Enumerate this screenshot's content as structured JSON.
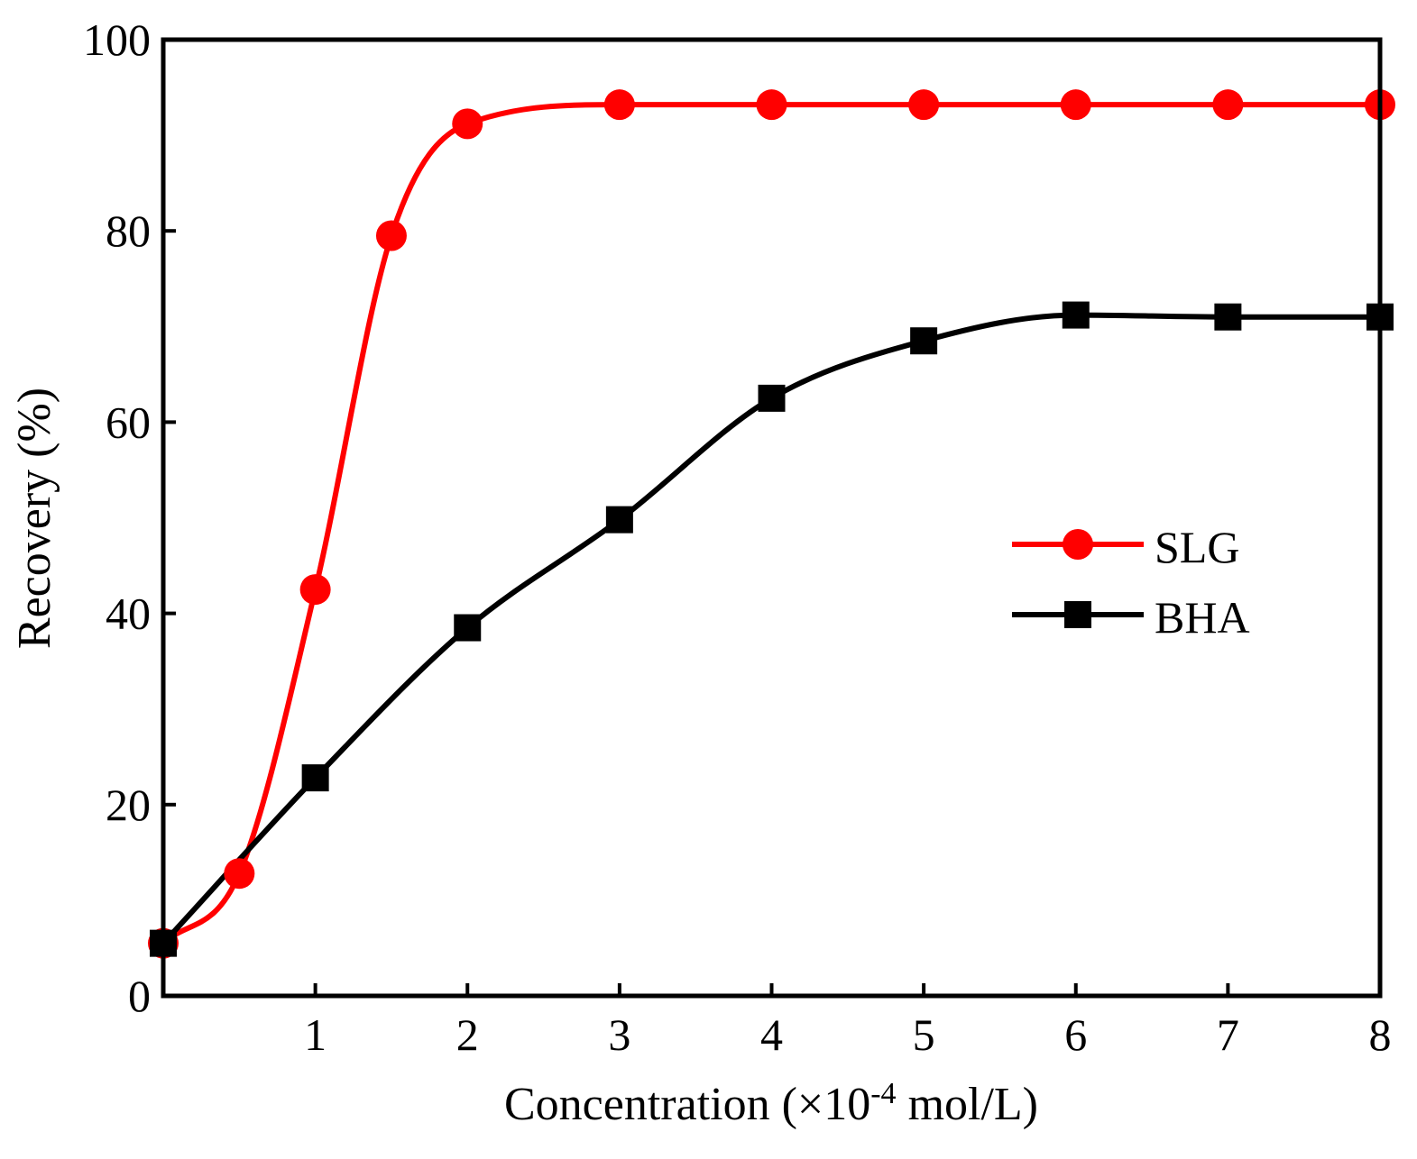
{
  "chart_data": {
    "type": "line",
    "xlabel": "Concentration (×10",
    "xlabel_superscript": "-4",
    "xlabel_suffix": " mol/L)",
    "ylabel": "Recovery (%)",
    "xlim": [
      0,
      8
    ],
    "ylim": [
      0,
      100
    ],
    "x_ticks": [
      "1",
      "2",
      "3",
      "4",
      "5",
      "6",
      "7",
      "8"
    ],
    "y_ticks": [
      "0",
      "20",
      "40",
      "60",
      "80",
      "100"
    ],
    "grid": false,
    "legend_position": "center-right",
    "series": [
      {
        "name": "SLG",
        "color": "#ff0000",
        "marker": "circle",
        "x": [
          0,
          0.5,
          1,
          1.5,
          2,
          3,
          4,
          5,
          6,
          7,
          8
        ],
        "y": [
          5.5,
          12.8,
          42.5,
          79.5,
          91.2,
          93.2,
          93.2,
          93.2,
          93.2,
          93.2,
          93.2
        ]
      },
      {
        "name": "BHA",
        "color": "#000000",
        "marker": "square",
        "x": [
          0,
          1,
          2,
          3,
          4,
          5,
          6,
          7,
          8
        ],
        "y": [
          5.5,
          22.8,
          38.5,
          49.8,
          62.5,
          68.5,
          71.2,
          71.0,
          71.0
        ]
      }
    ]
  }
}
